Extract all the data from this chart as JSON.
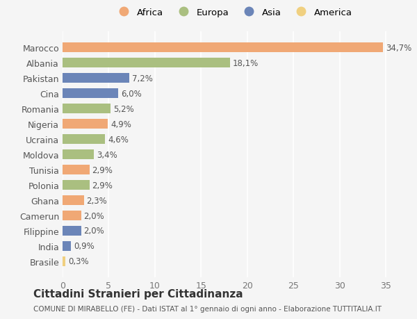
{
  "countries": [
    "Marocco",
    "Albania",
    "Pakistan",
    "Cina",
    "Romania",
    "Nigeria",
    "Ucraina",
    "Moldova",
    "Tunisia",
    "Polonia",
    "Ghana",
    "Camerun",
    "Filippine",
    "India",
    "Brasile"
  ],
  "values": [
    34.7,
    18.1,
    7.2,
    6.0,
    5.2,
    4.9,
    4.6,
    3.4,
    2.9,
    2.9,
    2.3,
    2.0,
    2.0,
    0.9,
    0.3
  ],
  "labels": [
    "34,7%",
    "18,1%",
    "7,2%",
    "6,0%",
    "5,2%",
    "4,9%",
    "4,6%",
    "3,4%",
    "2,9%",
    "2,9%",
    "2,3%",
    "2,0%",
    "2,0%",
    "0,9%",
    "0,3%"
  ],
  "continents": [
    "Africa",
    "Europa",
    "Asia",
    "Asia",
    "Europa",
    "Africa",
    "Europa",
    "Europa",
    "Africa",
    "Europa",
    "Africa",
    "Africa",
    "Asia",
    "Asia",
    "America"
  ],
  "colors": {
    "Africa": "#F0A875",
    "Europa": "#AABF80",
    "Asia": "#6B85B8",
    "America": "#F0D080"
  },
  "legend_order": [
    "Africa",
    "Europa",
    "Asia",
    "America"
  ],
  "title": "Cittadini Stranieri per Cittadinanza",
  "subtitle": "COMUNE DI MIRABELLO (FE) - Dati ISTAT al 1° gennaio di ogni anno - Elaborazione TUTTITALIA.IT",
  "xlim": [
    0,
    37
  ],
  "xticks": [
    0,
    5,
    10,
    15,
    20,
    25,
    30,
    35
  ],
  "background_color": "#f5f5f5",
  "bar_height": 0.65
}
